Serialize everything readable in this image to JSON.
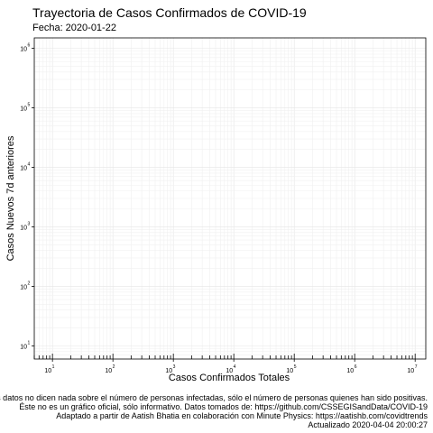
{
  "chart_data": {
    "type": "line",
    "title": "Trayectoria de Casos Confirmados de COVID-19",
    "subtitle": "Fecha: 2020-01-22",
    "xlabel": "Casos Confirmados Totales",
    "ylabel": "Casos Nuevos 7d anteriores",
    "x_scale": "log",
    "y_scale": "log",
    "xlim": [
      5,
      15000000
    ],
    "ylim": [
      6,
      1500000
    ],
    "x_ticks": [
      {
        "base": "10",
        "exp": "1"
      },
      {
        "base": "10",
        "exp": "2"
      },
      {
        "base": "10",
        "exp": "3"
      },
      {
        "base": "10",
        "exp": "4"
      },
      {
        "base": "10",
        "exp": "5"
      },
      {
        "base": "10",
        "exp": "6"
      },
      {
        "base": "10",
        "exp": "7"
      }
    ],
    "y_ticks": [
      {
        "base": "10",
        "exp": "1"
      },
      {
        "base": "10",
        "exp": "2"
      },
      {
        "base": "10",
        "exp": "3"
      },
      {
        "base": "10",
        "exp": "4"
      },
      {
        "base": "10",
        "exp": "5"
      },
      {
        "base": "10",
        "exp": "6"
      }
    ],
    "grid": true,
    "series": []
  },
  "footnotes": [
    "Los datos no dicen nada sobre el número de personas infectadas, sólo el número de personas quienes han sido positivas.",
    "Éste no es un gráfico oficial, sólo informativo. Datos tomados de: https://github.com/CSSEGISandData/COVID-19",
    "Adaptado a partir de Aatish Bhatia en colaboración con Minute Physics: https://aatishb.com/covidtrends",
    "Actualizado 2020-04-04 20:00:27"
  ]
}
